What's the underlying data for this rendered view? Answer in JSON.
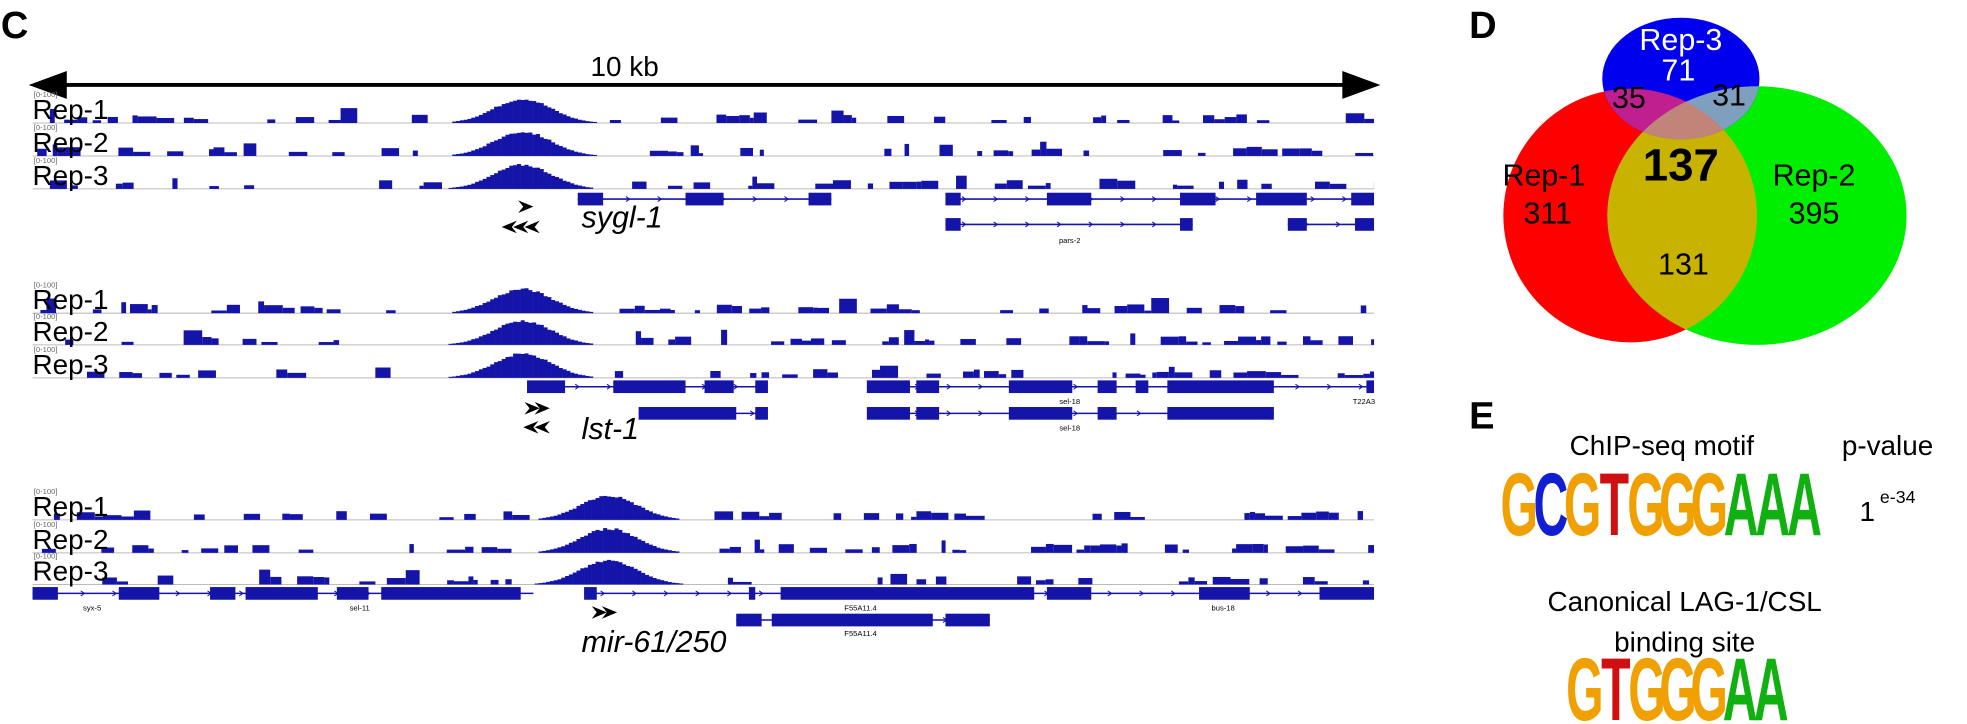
{
  "panel_c": {
    "label": "C",
    "scale": "10 kb",
    "groups": [
      {
        "tracks": [
          "Rep-1",
          "Rep-2",
          "Rep-3"
        ],
        "gene": "sygl-1",
        "annotations": [
          "pars-2"
        ]
      },
      {
        "tracks": [
          "Rep-1",
          "Rep-2",
          "Rep-3"
        ],
        "gene": "lst-1",
        "annotations": [
          "sel-18",
          "sel-18",
          "T22A3"
        ]
      },
      {
        "tracks": [
          "Rep-1",
          "Rep-2",
          "Rep-3"
        ],
        "gene": "mir-61/250",
        "annotations": [
          "syx-5",
          "sel-11",
          "F55A11.4",
          "F55A11.4",
          "bus-18"
        ]
      }
    ]
  },
  "panel_d": {
    "label": "D",
    "sets": [
      {
        "name": "Rep-3",
        "count": 71
      },
      {
        "name": "Rep-1",
        "count": 311
      },
      {
        "name": "Rep-2",
        "count": 395
      }
    ],
    "overlaps": {
      "rep1_rep3": 35,
      "rep2_rep3": 31,
      "rep1_rep2": 131,
      "all": 137
    }
  },
  "panel_e": {
    "label": "E",
    "motif_header": "ChIP-seq motif",
    "pvalue_header": "p-value",
    "pvalue_base": "1",
    "pvalue_exp": "e-34",
    "motif": [
      "G",
      "C",
      "G",
      "T",
      "G",
      "G",
      "G",
      "A",
      "A",
      "A"
    ],
    "canonical_title": [
      "Canonical LAG-1/CSL",
      "binding site"
    ],
    "canonical_motif": [
      "G",
      "T",
      "G",
      "G",
      "G",
      "A",
      "A"
    ]
  }
}
